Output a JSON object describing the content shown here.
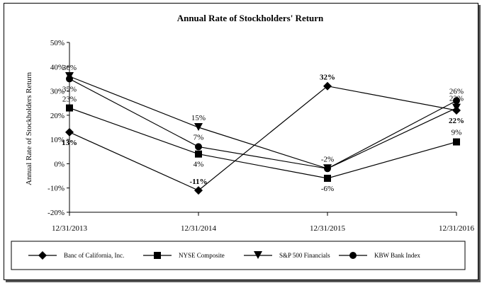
{
  "chart_data": {
    "type": "line",
    "title": "Annual Rate of Stockholders' Return",
    "ylabel": "Annual Rate of Stockholders Return",
    "xlabel": "",
    "x": [
      "12/31/2013",
      "12/31/2014",
      "12/31/2015",
      "12/31/2016"
    ],
    "ylim": [
      -20,
      50
    ],
    "yticks": [
      "-20%",
      "-10%",
      "0%",
      "10%",
      "20%",
      "30%",
      "40%",
      "50%"
    ],
    "grid": false,
    "legend_position": "bottom",
    "series": [
      {
        "name": "Banc of California, Inc.",
        "marker": "diamond",
        "values": [
          13,
          -11,
          32,
          22
        ],
        "labels": [
          "13%",
          "-11%",
          "32%",
          "22%"
        ],
        "bold_labels": true
      },
      {
        "name": "NYSE Composite",
        "marker": "square",
        "values": [
          23,
          4,
          -6,
          9
        ],
        "labels": [
          "23%",
          "4%",
          "-6%",
          "9%"
        ],
        "bold_labels": false
      },
      {
        "name": "S&P 500 Financials",
        "marker": "triangle-down",
        "values": [
          36,
          15,
          -2,
          23
        ],
        "labels": [
          "36%",
          "15%",
          "-2%",
          "23%"
        ],
        "bold_labels": false
      },
      {
        "name": "KBW Bank Index",
        "marker": "circle",
        "values": [
          35,
          7,
          -2,
          26
        ],
        "labels": [
          "35%",
          "7%",
          "",
          "26%"
        ],
        "bold_labels": false
      }
    ]
  }
}
